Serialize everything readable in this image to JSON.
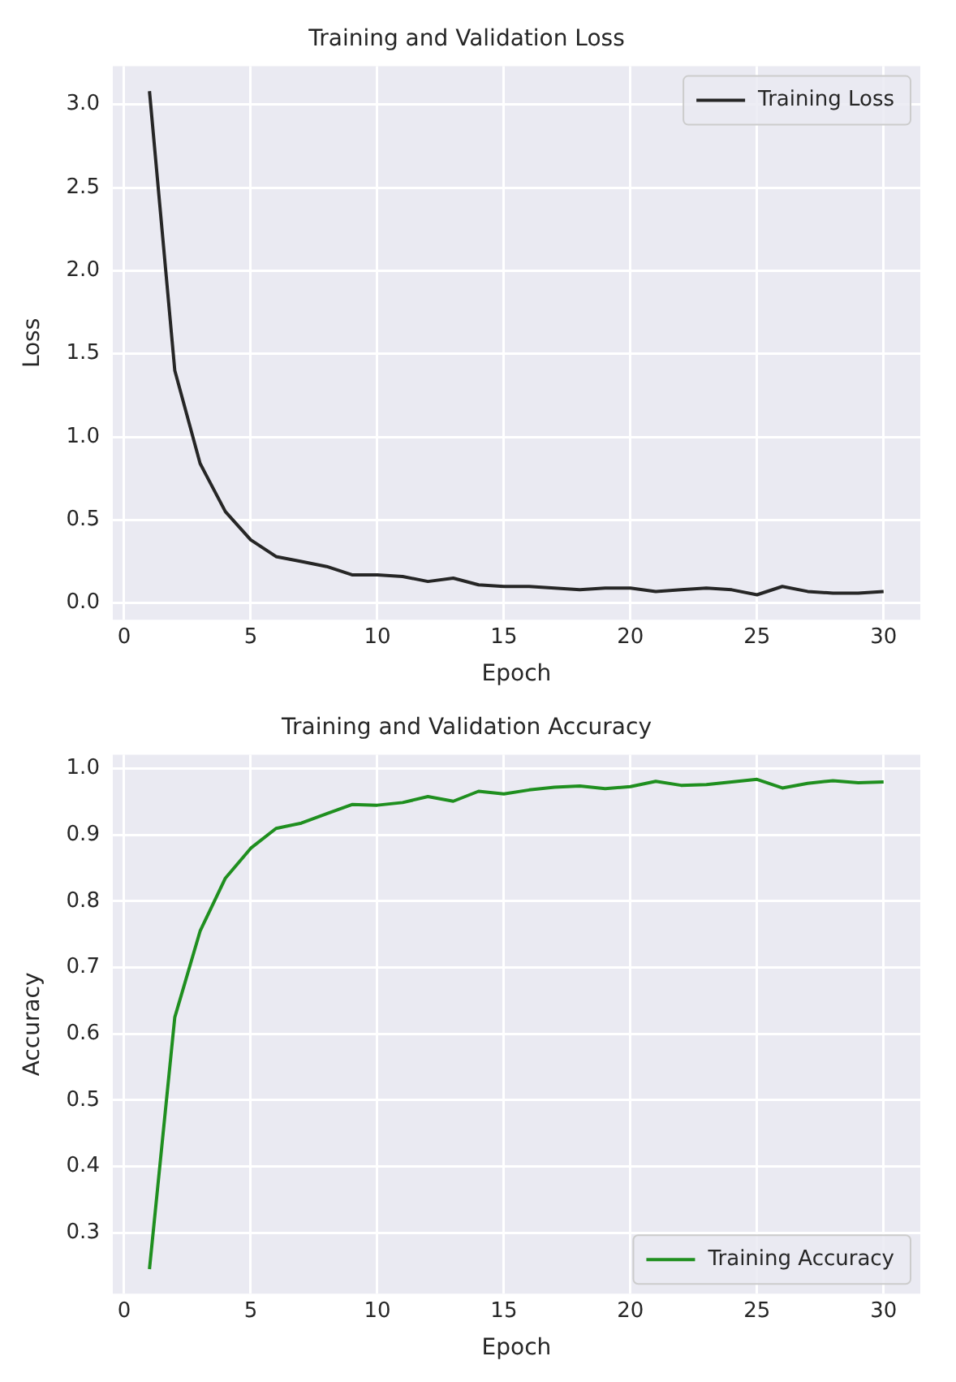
{
  "chart_data": [
    {
      "type": "line",
      "title": "Training and Validation Loss",
      "xlabel": "Epoch",
      "ylabel": "Loss",
      "x": [
        1,
        2,
        3,
        4,
        5,
        6,
        7,
        8,
        9,
        10,
        11,
        12,
        13,
        14,
        15,
        16,
        17,
        18,
        19,
        20,
        21,
        22,
        23,
        24,
        25,
        26,
        27,
        28,
        29,
        30
      ],
      "series": [
        {
          "name": "Training Loss",
          "color": "#262626",
          "values": [
            3.08,
            1.4,
            0.84,
            0.55,
            0.38,
            0.28,
            0.25,
            0.22,
            0.17,
            0.17,
            0.16,
            0.13,
            0.15,
            0.11,
            0.1,
            0.1,
            0.09,
            0.08,
            0.09,
            0.09,
            0.07,
            0.08,
            0.09,
            0.08,
            0.05,
            0.1,
            0.07,
            0.06,
            0.06,
            0.07
          ]
        }
      ],
      "xlim": [
        -0.45,
        31.45
      ],
      "xticks": [
        0,
        5,
        10,
        15,
        20,
        25,
        30
      ],
      "ylim": [
        -0.1,
        3.23
      ],
      "yticks": [
        {
          "value": 0,
          "label": "0.0"
        },
        {
          "value": 0.5,
          "label": "0.5"
        },
        {
          "value": 1,
          "label": "1.0"
        },
        {
          "value": 1.5,
          "label": "1.5"
        },
        {
          "value": 2,
          "label": "2.0"
        },
        {
          "value": 2.5,
          "label": "2.5"
        },
        {
          "value": 3,
          "label": "3.0"
        }
      ],
      "grid": true,
      "legend": "top right",
      "marker": "none",
      "line_style": "solid"
    },
    {
      "type": "line",
      "title": "Training and Validation Accuracy",
      "xlabel": "Epoch",
      "ylabel": "Accuracy",
      "x": [
        1,
        2,
        3,
        4,
        5,
        6,
        7,
        8,
        9,
        10,
        11,
        12,
        13,
        14,
        15,
        16,
        17,
        18,
        19,
        20,
        21,
        22,
        23,
        24,
        25,
        26,
        27,
        28,
        29,
        30
      ],
      "series": [
        {
          "name": "Training Accuracy",
          "color": "#1f8f1f",
          "values": [
            0.245,
            0.625,
            0.755,
            0.835,
            0.88,
            0.91,
            0.918,
            0.932,
            0.946,
            0.945,
            0.949,
            0.958,
            0.951,
            0.966,
            0.962,
            0.968,
            0.972,
            0.974,
            0.97,
            0.973,
            0.981,
            0.975,
            0.976,
            0.98,
            0.984,
            0.971,
            0.978,
            0.982,
            0.979,
            0.98
          ]
        }
      ],
      "xlim": [
        -0.45,
        31.45
      ],
      "xticks": [
        0,
        5,
        10,
        15,
        20,
        25,
        30
      ],
      "ylim": [
        0.208,
        1.021
      ],
      "yticks": [
        0.3,
        0.4,
        0.5,
        0.6,
        0.7,
        0.8,
        0.9,
        {
          "value": 1,
          "label": "1.0"
        }
      ],
      "grid": true,
      "legend": "bottom right",
      "marker": "none",
      "line_style": "solid"
    }
  ]
}
